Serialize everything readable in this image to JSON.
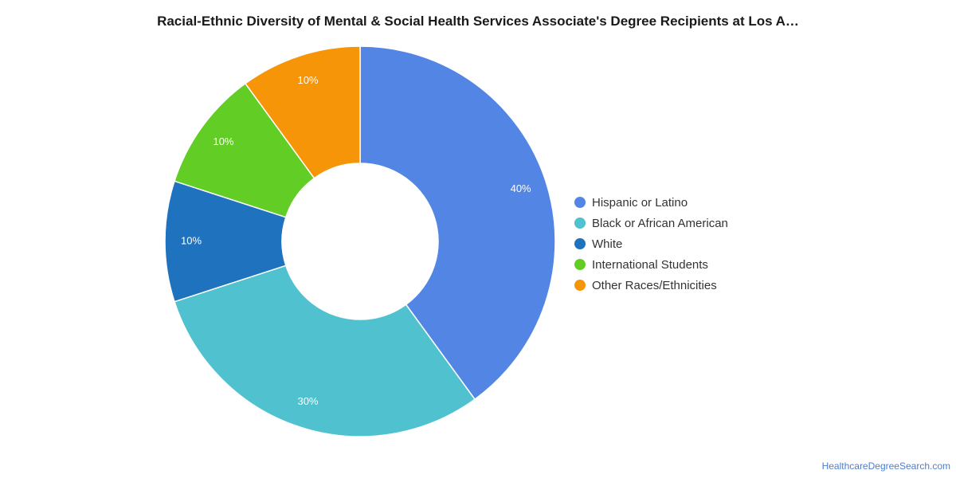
{
  "chart_data": {
    "type": "pie",
    "title": "Racial-Ethnic Diversity of Mental & Social Health Services Associate's Degree Recipients at Los A…",
    "categories": [
      "Hispanic or Latino",
      "Black or African American",
      "White",
      "International Students",
      "Other Races/Ethnicities"
    ],
    "values": [
      40,
      30,
      10,
      10,
      10
    ],
    "value_labels": [
      "40%",
      "30%",
      "10%",
      "10%",
      "10%"
    ],
    "colors": [
      "#5386e4",
      "#4fc1cf",
      "#1f72bd",
      "#62cd25",
      "#f79508"
    ],
    "donut": true,
    "legend_position": "right"
  },
  "source": "HealthcareDegreeSearch.com"
}
